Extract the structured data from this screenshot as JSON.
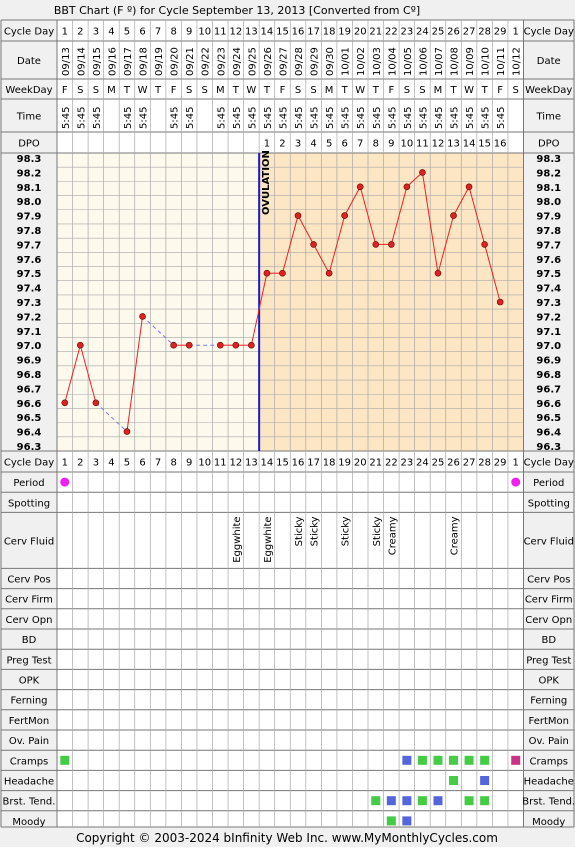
{
  "title": "BBT Chart (F º) for Cycle September 13, 2013  [Converted from Cº]",
  "footer": "Copyright © 2003-2024 bInfinity Web Inc.    www.MyMonthlyCycles.com",
  "colors": {
    "page_bg": "#f0f0f0",
    "follicular_bg": "#fdf9ec",
    "luteal_bg": "#fce6c4",
    "grid_line": "#a8a8a8",
    "line": "#f02020",
    "point_fill": "#dd2222",
    "dashed_line": "#7a7ae8",
    "ovulation": "#1a1acc",
    "period_dot": "#ee22ee",
    "green": "#44cc44",
    "blue": "#5566dd",
    "magenta": "#cc3388"
  },
  "labels": {
    "cycle_day": "Cycle Day",
    "date": "Date",
    "weekday": "WeekDay",
    "time": "Time",
    "dpo": "DPO",
    "ovulation": "OVULATION"
  },
  "symptom_labels": [
    "Period",
    "Spotting",
    "Cerv Fluid",
    "Cerv Pos",
    "Cerv Firm",
    "Cerv Opn",
    "BD",
    "Preg Test",
    "OPK",
    "Ferning",
    "FertMon",
    "Ov. Pain",
    "Cramps",
    "Headache",
    "Brst. Tend.",
    "Moody"
  ],
  "chart_data": {
    "type": "line",
    "title": "BBT Chart (F º) for Cycle September 13, 2013  [Converted from Cº]",
    "cycle_days": [
      "1",
      "2",
      "3",
      "4",
      "5",
      "6",
      "7",
      "8",
      "9",
      "10",
      "11",
      "12",
      "13",
      "14",
      "15",
      "16",
      "17",
      "18",
      "19",
      "20",
      "21",
      "22",
      "23",
      "24",
      "25",
      "26",
      "27",
      "28",
      "29",
      "1"
    ],
    "dates": [
      "09/13",
      "09/14",
      "09/15",
      "09/16",
      "09/17",
      "09/18",
      "09/19",
      "09/20",
      "09/21",
      "09/22",
      "09/23",
      "09/24",
      "09/25",
      "09/26",
      "09/27",
      "09/28",
      "09/29",
      "09/30",
      "10/01",
      "10/02",
      "10/03",
      "10/04",
      "10/05",
      "10/06",
      "10/07",
      "10/08",
      "10/09",
      "10/10",
      "10/11",
      "10/12"
    ],
    "weekdays": [
      "F",
      "S",
      "S",
      "M",
      "T",
      "W",
      "T",
      "F",
      "S",
      "S",
      "M",
      "T",
      "W",
      "T",
      "F",
      "S",
      "S",
      "M",
      "T",
      "W",
      "T",
      "F",
      "S",
      "S",
      "M",
      "T",
      "W",
      "T",
      "F",
      "S"
    ],
    "times": [
      "5:45",
      "5:45",
      "5:45",
      "",
      "5:45",
      "5:45",
      "",
      "5:45",
      "5:45",
      "",
      "5:45",
      "5:45",
      "5:45",
      "5:45",
      "5:45",
      "5:45",
      "5:45",
      "5:45",
      "5:45",
      "5:45",
      "5:45",
      "5:45",
      "5:45",
      "5:45",
      "5:45",
      "5:45",
      "5:45",
      "5:45",
      "5:45",
      ""
    ],
    "dpo": [
      "",
      "",
      "",
      "",
      "",
      "",
      "",
      "",
      "",
      "",
      "",
      "",
      "",
      "1",
      "2",
      "3",
      "4",
      "5",
      "6",
      "7",
      "8",
      "9",
      "10",
      "11",
      "12",
      "13",
      "14",
      "15",
      "16",
      ""
    ],
    "temperatures": [
      96.6,
      97.0,
      96.6,
      null,
      96.4,
      97.2,
      null,
      97.0,
      97.0,
      null,
      97.0,
      97.0,
      97.0,
      97.5,
      97.5,
      97.9,
      97.7,
      97.5,
      97.9,
      98.1,
      97.7,
      97.7,
      98.1,
      98.2,
      97.5,
      97.9,
      98.1,
      97.7,
      97.3,
      null
    ],
    "y_ticks": [
      "98.3",
      "98.2",
      "98.1",
      "98.0",
      "97.9",
      "97.8",
      "97.7",
      "97.6",
      "97.5",
      "97.4",
      "97.3",
      "97.2",
      "97.1",
      "97.0",
      "96.9",
      "96.8",
      "96.7",
      "96.6",
      "96.5",
      "96.4",
      "96.3"
    ],
    "ylim": [
      96.3,
      98.3
    ],
    "ovulation_day_index": 12,
    "grid": true,
    "cerv_fluid": [
      "",
      "",
      "",
      "",
      "",
      "",
      "",
      "",
      "",
      "",
      "",
      "Eggwhite",
      "",
      "Eggwhite",
      "",
      "Sticky",
      "Sticky",
      "",
      "Sticky",
      "",
      "Sticky",
      "Creamy",
      "",
      "",
      "",
      "Creamy",
      "",
      "",
      "",
      ""
    ],
    "period": [
      true,
      false,
      false,
      false,
      false,
      false,
      false,
      false,
      false,
      false,
      false,
      false,
      false,
      false,
      false,
      false,
      false,
      false,
      false,
      false,
      false,
      false,
      false,
      false,
      false,
      false,
      false,
      false,
      false,
      true
    ],
    "markers": {
      "Cramps": [
        {
          "day": 0,
          "color": "green"
        },
        {
          "day": 22,
          "color": "blue"
        },
        {
          "day": 23,
          "color": "green"
        },
        {
          "day": 24,
          "color": "green"
        },
        {
          "day": 25,
          "color": "green"
        },
        {
          "day": 26,
          "color": "green"
        },
        {
          "day": 27,
          "color": "green"
        },
        {
          "day": 29,
          "color": "magenta"
        }
      ],
      "Headache": [
        {
          "day": 25,
          "color": "green"
        },
        {
          "day": 27,
          "color": "blue"
        }
      ],
      "Brst. Tend.": [
        {
          "day": 20,
          "color": "green"
        },
        {
          "day": 21,
          "color": "blue"
        },
        {
          "day": 22,
          "color": "blue"
        },
        {
          "day": 23,
          "color": "green"
        },
        {
          "day": 24,
          "color": "blue"
        },
        {
          "day": 26,
          "color": "green"
        },
        {
          "day": 27,
          "color": "green"
        }
      ],
      "Moody": [
        {
          "day": 21,
          "color": "green"
        },
        {
          "day": 22,
          "color": "blue"
        }
      ]
    }
  }
}
